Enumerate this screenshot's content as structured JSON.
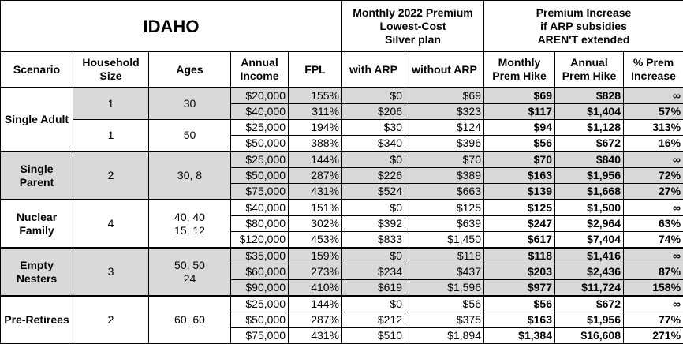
{
  "header": {
    "title": "IDAHO",
    "premium_heading": [
      "Monthly 2022 Premium",
      "Lowest-Cost",
      "Silver plan"
    ],
    "increase_heading": [
      "Premium Increase",
      "if ARP subsidies",
      "AREN'T extended"
    ],
    "columns": [
      [
        "Scenario"
      ],
      [
        "Household",
        "Size"
      ],
      [
        "Ages"
      ],
      [
        "Annual",
        "Income"
      ],
      [
        "FPL"
      ],
      [
        "with ARP"
      ],
      [
        "without ARP"
      ],
      [
        "Monthly",
        "Prem Hike"
      ],
      [
        "Annual",
        "Prem Hike"
      ],
      [
        "% Prem",
        "Increase"
      ]
    ]
  },
  "table": {
    "shade": "#d9d9d9",
    "groups": [
      {
        "scenario": "Single Adult",
        "shaded": false,
        "subgroups": [
          {
            "household": "1",
            "ages": [
              "30"
            ],
            "shaded": true,
            "rows": [
              [
                "$20,000",
                "155%",
                "$0",
                "$69",
                "$69",
                "$828",
                "∞"
              ],
              [
                "$40,000",
                "311%",
                "$206",
                "$323",
                "$117",
                "$1,404",
                "57%"
              ]
            ]
          },
          {
            "household": "1",
            "ages": [
              "50"
            ],
            "shaded": false,
            "rows": [
              [
                "$25,000",
                "194%",
                "$30",
                "$124",
                "$94",
                "$1,128",
                "313%"
              ],
              [
                "$50,000",
                "388%",
                "$340",
                "$396",
                "$56",
                "$672",
                "16%"
              ]
            ]
          }
        ]
      },
      {
        "scenario": "Single Parent",
        "shaded": true,
        "subgroups": [
          {
            "household": "2",
            "ages": [
              "30, 8"
            ],
            "shaded": true,
            "rows": [
              [
                "$25,000",
                "144%",
                "$0",
                "$70",
                "$70",
                "$840",
                "∞"
              ],
              [
                "$50,000",
                "287%",
                "$226",
                "$389",
                "$163",
                "$1,956",
                "72%"
              ],
              [
                "$75,000",
                "431%",
                "$524",
                "$663",
                "$139",
                "$1,668",
                "27%"
              ]
            ]
          }
        ]
      },
      {
        "scenario": "Nuclear Family",
        "shaded": false,
        "subgroups": [
          {
            "household": "4",
            "ages": [
              "40, 40",
              "15, 12"
            ],
            "shaded": false,
            "rows": [
              [
                "$40,000",
                "151%",
                "$0",
                "$125",
                "$125",
                "$1,500",
                "∞"
              ],
              [
                "$80,000",
                "302%",
                "$392",
                "$639",
                "$247",
                "$2,964",
                "63%"
              ],
              [
                "$120,000",
                "453%",
                "$833",
                "$1,450",
                "$617",
                "$7,404",
                "74%"
              ]
            ]
          }
        ]
      },
      {
        "scenario": "Empty Nesters",
        "shaded": true,
        "subgroups": [
          {
            "household": "3",
            "ages": [
              "50, 50",
              "24"
            ],
            "shaded": true,
            "rows": [
              [
                "$35,000",
                "159%",
                "$0",
                "$118",
                "$118",
                "$1,416",
                "∞"
              ],
              [
                "$60,000",
                "273%",
                "$234",
                "$437",
                "$203",
                "$2,436",
                "87%"
              ],
              [
                "$90,000",
                "410%",
                "$619",
                "$1,596",
                "$977",
                "$11,724",
                "158%"
              ]
            ]
          }
        ]
      },
      {
        "scenario": "Pre-Retirees",
        "shaded": false,
        "subgroups": [
          {
            "household": "2",
            "ages": [
              "60, 60"
            ],
            "shaded": false,
            "rows": [
              [
                "$25,000",
                "144%",
                "$0",
                "$56",
                "$56",
                "$672",
                "∞"
              ],
              [
                "$50,000",
                "287%",
                "$212",
                "$375",
                "$163",
                "$1,956",
                "77%"
              ],
              [
                "$75,000",
                "431%",
                "$510",
                "$1,894",
                "$1,384",
                "$16,608",
                "271%"
              ]
            ]
          }
        ]
      }
    ]
  }
}
